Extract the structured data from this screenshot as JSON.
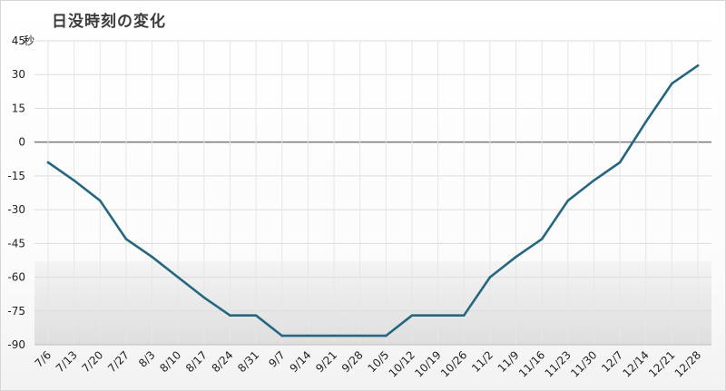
{
  "chart_data": {
    "type": "line",
    "title": "日没時刻の変化",
    "y_unit": "秒",
    "xlabel": "",
    "ylabel": "",
    "ylim": [
      -90,
      45
    ],
    "y_ticks": [
      45,
      30,
      15,
      0,
      -15,
      -30,
      -45,
      -60,
      -75,
      -90
    ],
    "grid": true,
    "legend": "none",
    "x": [
      "7/6",
      "7/13",
      "7/20",
      "7/27",
      "8/3",
      "8/10",
      "8/17",
      "8/24",
      "8/31",
      "9/7",
      "9/14",
      "9/21",
      "9/28",
      "10/5",
      "10/12",
      "10/19",
      "10/26",
      "11/2",
      "11/9",
      "11/16",
      "11/23",
      "11/30",
      "12/7",
      "12/14",
      "12/21",
      "12/28"
    ],
    "series": [
      {
        "values": [
          -9,
          -17,
          -26,
          -43,
          -51,
          -60,
          -69,
          -77,
          -77,
          -86,
          -86,
          -86,
          -86,
          -86,
          -77,
          -77,
          -77,
          -60,
          -51,
          -43,
          -26,
          -17,
          -9,
          9,
          26,
          34
        ]
      }
    ],
    "colors": {
      "line": "#24677f",
      "zero_line": "#777777",
      "grid": "#dcdcdc"
    }
  }
}
